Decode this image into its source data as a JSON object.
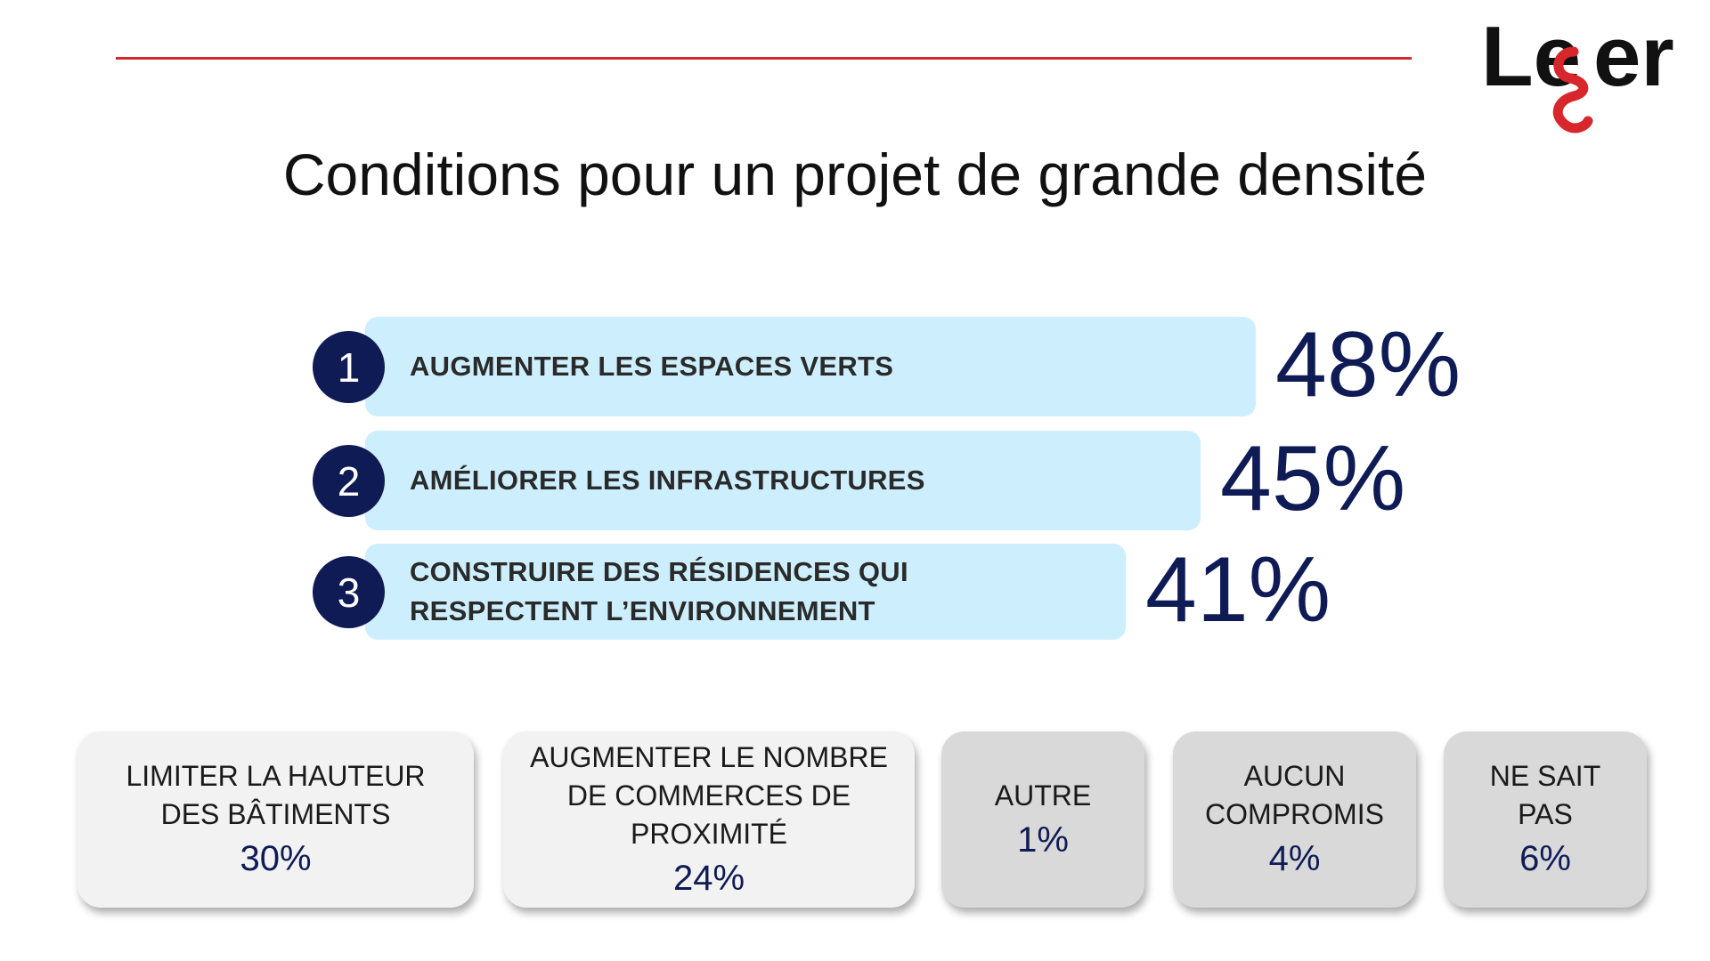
{
  "title": "Conditions pour un projet de grande densité",
  "logo": {
    "text": "Leger"
  },
  "colors": {
    "accent_red": "#d7262c",
    "navy": "#0f1b55",
    "bar_fill": "#cdeffd",
    "card_light": "#f2f2f2",
    "card_dark": "#d9d9d9"
  },
  "chart_data": {
    "type": "bar",
    "orientation": "horizontal",
    "unit": "%",
    "categories": [
      "AUGMENTER LES ESPACES VERTS",
      "AMÉLIORER LES INFRASTRUCTURES",
      "CONSTRUIRE DES RÉSIDENCES QUI\nRESPECTENT L’ENVIRONNEMENT"
    ],
    "ranks": [
      "1",
      "2",
      "3"
    ],
    "values": [
      48,
      45,
      41
    ],
    "value_labels": [
      "48%",
      "45%",
      "41%"
    ]
  },
  "other_responses": [
    {
      "label": "LIMITER LA HAUTEUR\nDES BÂTIMENTS",
      "value": "30%"
    },
    {
      "label": "AUGMENTER LE NOMBRE\nDE COMMERCES DE\nPROXIMITÉ",
      "value": "24%"
    },
    {
      "label": "AUTRE",
      "value": "1%"
    },
    {
      "label": "AUCUN\nCOMPROMIS",
      "value": "4%"
    },
    {
      "label": "NE SAIT\nPAS",
      "value": "6%"
    }
  ]
}
